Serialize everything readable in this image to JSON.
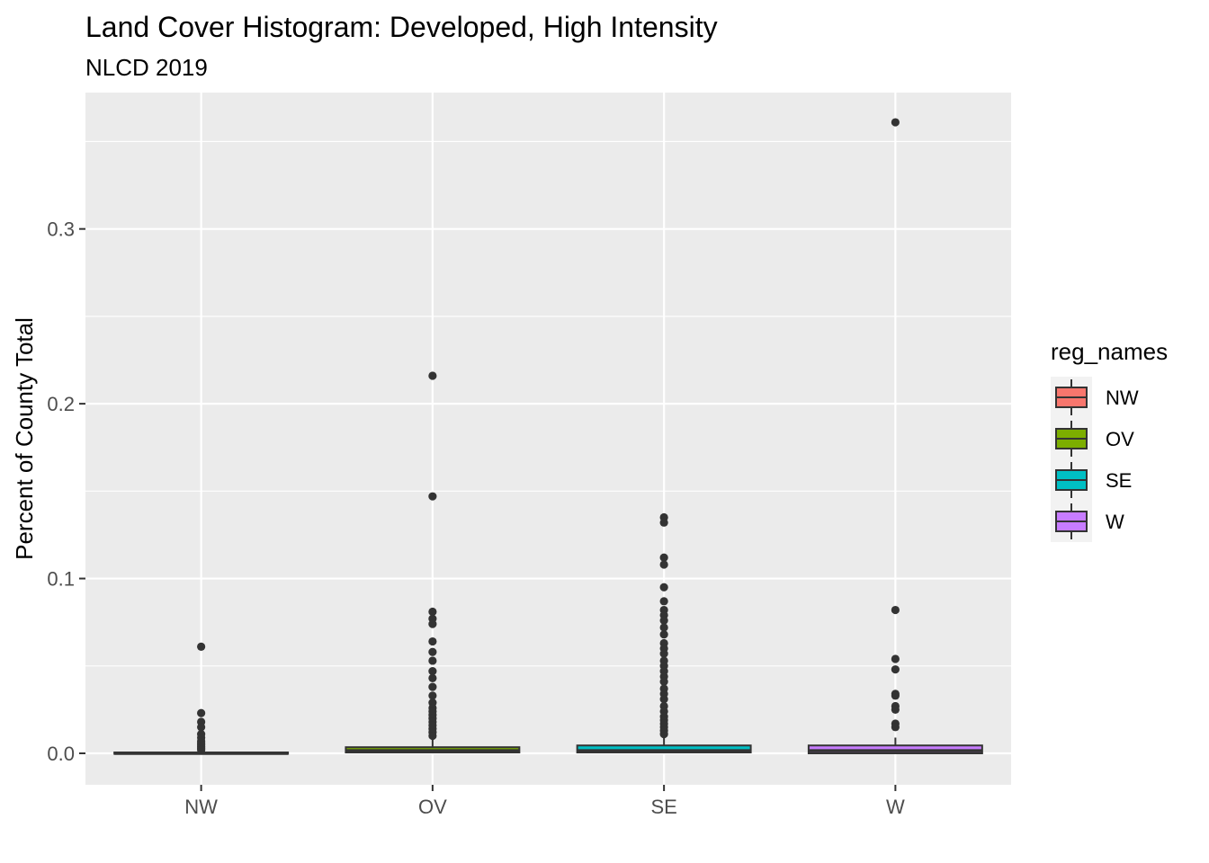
{
  "chart_data": {
    "type": "boxplot",
    "title": "Land Cover Histogram: Developed, High Intensity",
    "subtitle": "NLCD 2019",
    "xlabel": "",
    "ylabel": "Percent of County Total",
    "ylim": [
      -0.018,
      0.378
    ],
    "yticks": [
      0.0,
      0.1,
      0.2,
      0.3
    ],
    "ytick_labels": [
      "0.0",
      "0.1",
      "0.2",
      "0.3"
    ],
    "categories": [
      "NW",
      "OV",
      "SE",
      "W"
    ],
    "grid": true,
    "legend_position": "right",
    "legend_title": "reg_names",
    "colors": {
      "panel_background": "#ebebeb",
      "grid": "#ffffff",
      "outline": "#333333",
      "NW": "#F8766D",
      "OV": "#7CAE00",
      "SE": "#00BFC4",
      "W": "#C77CFF"
    },
    "boxes": [
      {
        "name": "NW",
        "min": 0.0,
        "q1": 0.0,
        "median": 0.0,
        "q3": 0.0005,
        "max": 0.001,
        "outliers": [
          0.061,
          0.023,
          0.018,
          0.015,
          0.011,
          0.009,
          0.007,
          0.006,
          0.005,
          0.004,
          0.003,
          0.002
        ]
      },
      {
        "name": "OV",
        "min": 0.0,
        "q1": 0.0005,
        "median": 0.0015,
        "q3": 0.0035,
        "max": 0.008,
        "outliers": [
          0.216,
          0.147,
          0.081,
          0.077,
          0.074,
          0.064,
          0.058,
          0.053,
          0.047,
          0.043,
          0.038,
          0.033,
          0.029,
          0.026,
          0.024,
          0.022,
          0.02,
          0.018,
          0.016,
          0.014,
          0.012,
          0.01
        ]
      },
      {
        "name": "SE",
        "min": 0.0,
        "q1": 0.0005,
        "median": 0.0015,
        "q3": 0.0045,
        "max": 0.009,
        "outliers": [
          0.135,
          0.132,
          0.112,
          0.108,
          0.095,
          0.087,
          0.082,
          0.079,
          0.076,
          0.072,
          0.068,
          0.063,
          0.06,
          0.057,
          0.053,
          0.05,
          0.047,
          0.044,
          0.041,
          0.037,
          0.034,
          0.031,
          0.027,
          0.024,
          0.021,
          0.019,
          0.017,
          0.015,
          0.013,
          0.011
        ]
      },
      {
        "name": "W",
        "min": 0.0,
        "q1": 0.0,
        "median": 0.0015,
        "q3": 0.0045,
        "max": 0.009,
        "outliers": [
          0.361,
          0.082,
          0.054,
          0.048,
          0.034,
          0.033,
          0.027,
          0.025,
          0.017,
          0.015
        ]
      }
    ]
  }
}
